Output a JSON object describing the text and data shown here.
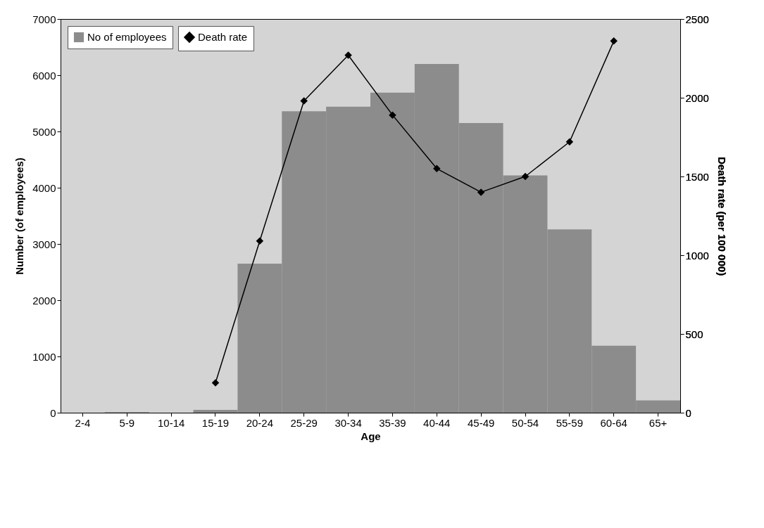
{
  "chart_data": {
    "type": "bar",
    "xlabel": "Age",
    "ylabel": "Number (of employees)",
    "y2label": "Death rate (per 100 000)",
    "categories": [
      "2-4",
      "5-9",
      "10-14",
      "15-19",
      "20-24",
      "25-29",
      "30-34",
      "35-39",
      "40-44",
      "45-49",
      "50-54",
      "55-59",
      "60-64",
      "65+"
    ],
    "series": [
      {
        "name": "No of employees",
        "type": "bar",
        "color": "#8c8c8c",
        "values": [
          0,
          10,
          0,
          50,
          2650,
          5360,
          5440,
          5690,
          6200,
          5150,
          4220,
          3260,
          1190,
          220
        ]
      },
      {
        "name": "Death rate",
        "type": "line",
        "axis": "y2",
        "color": "#000000",
        "marker": "diamond",
        "values": [
          null,
          null,
          null,
          190,
          1090,
          1980,
          2270,
          1890,
          1550,
          1400,
          1500,
          1720,
          2360,
          null
        ]
      }
    ],
    "ylim": [
      0,
      7000
    ],
    "yticks": [
      0,
      1000,
      2000,
      3000,
      4000,
      5000,
      6000,
      7000
    ],
    "y2lim": [
      0,
      2500
    ],
    "y2ticks": [
      0,
      500,
      1000,
      1500,
      2000,
      2500
    ],
    "grid": false,
    "legend": "top left"
  }
}
